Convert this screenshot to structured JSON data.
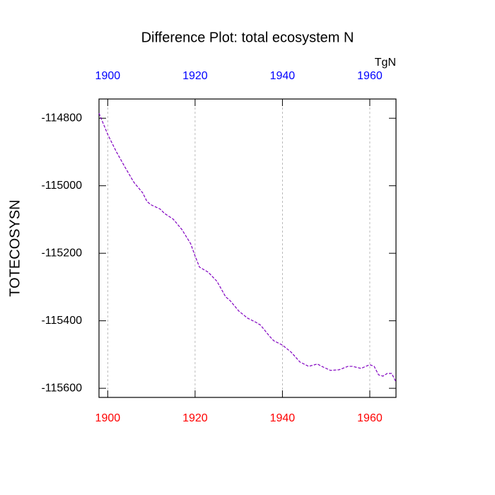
{
  "chart_data": {
    "type": "line",
    "title": "Difference Plot: total ecosystem N",
    "units": "TgN",
    "ylabel": "TOTECOSYSN",
    "x": [
      1898,
      1900,
      1902,
      1904,
      1906,
      1908,
      1909,
      1910,
      1912,
      1913,
      1915,
      1917,
      1919,
      1920,
      1921,
      1923,
      1925,
      1927,
      1928,
      1930,
      1932,
      1934,
      1935,
      1937,
      1938,
      1940,
      1942,
      1944,
      1946,
      1948,
      1949,
      1951,
      1953,
      1955,
      1956,
      1958,
      1960,
      1961,
      1962,
      1963,
      1964,
      1965,
      1966
    ],
    "series": [
      {
        "color": "#8000c0",
        "values": [
          -114785,
          -114848,
          -114900,
          -114946,
          -114990,
          -115021,
          -115047,
          -115057,
          -115069,
          -115082,
          -115099,
          -115130,
          -115172,
          -115208,
          -115241,
          -115256,
          -115283,
          -115329,
          -115340,
          -115371,
          -115392,
          -115405,
          -115413,
          -115445,
          -115459,
          -115472,
          -115493,
          -115522,
          -115535,
          -115528,
          -115535,
          -115547,
          -115545,
          -115535,
          -115535,
          -115541,
          -115530,
          -115535,
          -115560,
          -115564,
          -115556,
          -115556,
          -115581
        ]
      }
    ],
    "xlim": [
      1898,
      1966
    ],
    "xticks": [
      1900,
      1920,
      1940,
      1960
    ],
    "ylim": [
      -115627,
      -114743
    ],
    "yticks": [
      -114800,
      -115000,
      -115200,
      -115400,
      -115600
    ],
    "top_xtick_color": "#0000ff",
    "bottom_xtick_color": "#ff0000",
    "grid": "x",
    "dashed": true
  }
}
